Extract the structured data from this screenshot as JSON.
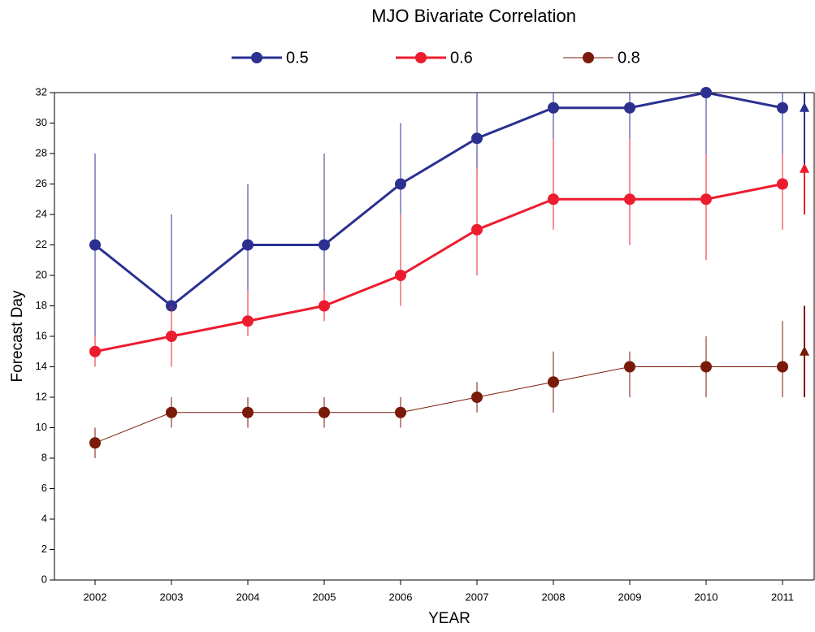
{
  "chart_data": {
    "type": "line",
    "title": "MJO Bivariate Correlation",
    "x_label": "YEAR",
    "y_label": "Forecast Day",
    "categories": [
      "2002",
      "2003",
      "2004",
      "2005",
      "2006",
      "2007",
      "2008",
      "2009",
      "2010",
      "2011"
    ],
    "ylim": [
      0,
      32
    ],
    "yticks": [
      0,
      2,
      4,
      6,
      8,
      10,
      12,
      14,
      16,
      18,
      20,
      22,
      24,
      26,
      28,
      30,
      32
    ],
    "series": [
      {
        "name": "0.5",
        "color": "#2b3091",
        "line_width": 3,
        "values": [
          22,
          18,
          22,
          22,
          26,
          29,
          31,
          31,
          32,
          31
        ],
        "error_low": [
          16,
          17,
          19,
          17,
          20,
          24,
          28,
          27,
          27,
          28
        ],
        "error_high": [
          28,
          24,
          26,
          28,
          30,
          32,
          32,
          32,
          32,
          32
        ],
        "summary": {
          "value": 31,
          "low": 27,
          "high": 32
        }
      },
      {
        "name": "0.6",
        "color": "#ec1c2e",
        "line_width": 3,
        "values": [
          15,
          16,
          17,
          18,
          20,
          23,
          25,
          25,
          25,
          26
        ],
        "error_low": [
          14,
          14,
          16,
          17,
          18,
          20,
          23,
          22,
          21,
          23
        ],
        "error_high": [
          16,
          18,
          19,
          19,
          24,
          27,
          29,
          29,
          28,
          28
        ],
        "summary": {
          "value": 27,
          "low": 24,
          "high": 27
        }
      },
      {
        "name": "0.8",
        "color": "#7a1a0a",
        "line_width": 1,
        "values": [
          9,
          11,
          11,
          11,
          11,
          12,
          13,
          14,
          14,
          14
        ],
        "error_low": [
          8,
          10,
          10,
          10,
          10,
          11,
          11,
          12,
          12,
          12
        ],
        "error_high": [
          10,
          12,
          12,
          12,
          12,
          13,
          15,
          15,
          16,
          17
        ],
        "summary": {
          "value": 15,
          "low": 12,
          "high": 18
        }
      }
    ]
  }
}
